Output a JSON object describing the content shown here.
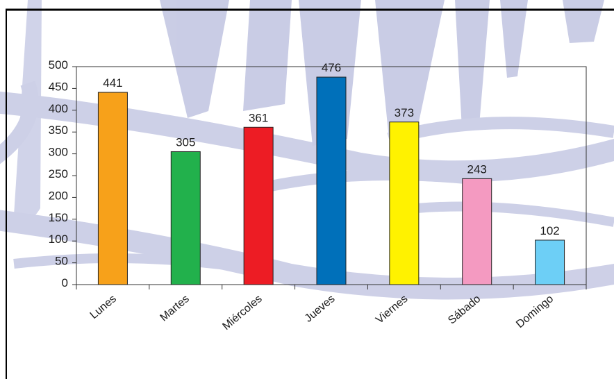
{
  "chart_data": {
    "type": "bar",
    "title": "",
    "xlabel": "",
    "ylabel": "",
    "categories": [
      "Lunes",
      "Martes",
      "Miércoles",
      "Jueves",
      "Viernes",
      "Sábado",
      "Domingo"
    ],
    "values": [
      441,
      305,
      361,
      476,
      373,
      243,
      102
    ],
    "bar_colors": [
      "#F7A11A",
      "#22B14C",
      "#ED1C24",
      "#0070BA",
      "#FFF200",
      "#F49AC1",
      "#6DCFF6"
    ],
    "yticks": [
      0,
      50,
      100,
      150,
      200,
      250,
      300,
      350,
      400,
      450,
      500
    ],
    "ylim": [
      0,
      500
    ],
    "grid": false,
    "legend": "none",
    "data_labels": true
  },
  "colors": {
    "background": "#ffffff",
    "watermark": "#C9CCE6",
    "axis": "#333333",
    "frame": "#000000",
    "bar_outline": "#222222"
  }
}
